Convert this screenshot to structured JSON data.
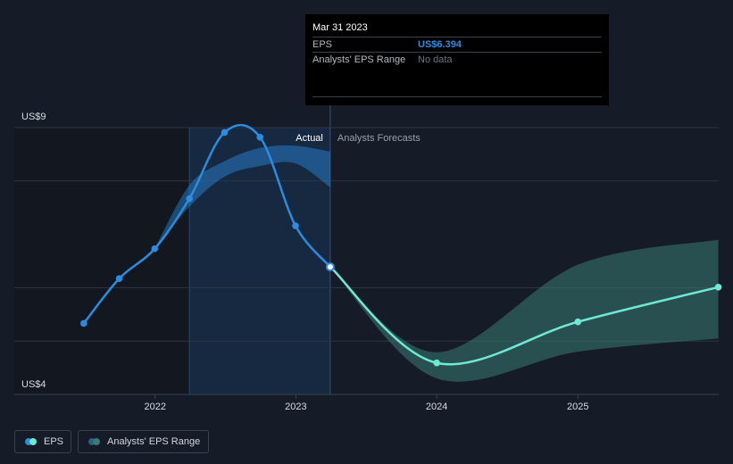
{
  "chart_data": {
    "type": "line",
    "y_axis_labels": [
      "US$9",
      "US$4"
    ],
    "ylim": [
      4,
      9
    ],
    "x_ticks": [
      "2022",
      "2023",
      "2024",
      "2025"
    ],
    "region_labels": {
      "actual": "Actual",
      "forecast": "Analysts Forecasts"
    },
    "series": [
      {
        "name": "EPS",
        "color": "#2b8ce0",
        "points": [
          {
            "x": "2021-06-30",
            "y": 5.33
          },
          {
            "x": "2021-09-30",
            "y": 6.17
          },
          {
            "x": "2021-12-31",
            "y": 6.73
          },
          {
            "x": "2022-03-31",
            "y": 7.67
          },
          {
            "x": "2022-06-30",
            "y": 8.91
          },
          {
            "x": "2022-09-30",
            "y": 8.82
          },
          {
            "x": "2022-12-31",
            "y": 7.16
          },
          {
            "x": "2023-03-31",
            "y": 6.39
          }
        ]
      },
      {
        "name": "EPS forecast",
        "color": "#6fe9d4",
        "points": [
          {
            "x": "2023-03-31",
            "y": 6.39
          },
          {
            "x": "2024-01-01",
            "y": 4.59
          },
          {
            "x": "2025-01-01",
            "y": 5.36
          },
          {
            "x": "2025-12-31",
            "y": 6.01
          }
        ]
      }
    ],
    "actual_range_band": {
      "color": "#2b8ce0",
      "points": [
        {
          "x": "2022-03-31",
          "low": 7.52,
          "high": 7.92
        },
        {
          "x": "2022-06-30",
          "low": 8.08,
          "high": 8.37
        },
        {
          "x": "2022-09-30",
          "low": 8.28,
          "high": 8.62
        },
        {
          "x": "2022-12-31",
          "low": 8.33,
          "high": 8.66
        },
        {
          "x": "2023-03-31",
          "low": 7.88,
          "high": 8.55
        }
      ]
    },
    "forecast_range_band": {
      "color": "#3a7b73",
      "points": [
        {
          "x": "2023-03-31",
          "low": 6.39,
          "high": 6.39
        },
        {
          "x": "2024-01-01",
          "low": 4.3,
          "high": 4.79
        },
        {
          "x": "2025-01-01",
          "low": 4.8,
          "high": 6.43
        },
        {
          "x": "2025-12-31",
          "low": 5.05,
          "high": 6.9
        }
      ]
    },
    "tooltip": {
      "date": "Mar 31 2023",
      "rows": [
        {
          "label": "EPS",
          "value": "US$6.394"
        },
        {
          "label": "Analysts' EPS Range",
          "value": "No data"
        }
      ]
    },
    "legend": [
      {
        "label": "EPS",
        "colors": [
          "#2b8ce0",
          "#6fe9d4"
        ]
      },
      {
        "label": "Analysts' EPS Range",
        "colors": [
          "#2b5d85",
          "#3a7b73"
        ]
      }
    ]
  }
}
